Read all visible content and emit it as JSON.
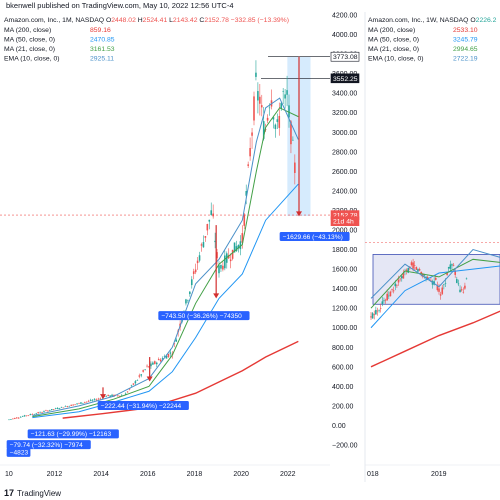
{
  "header": {
    "published": "bkenwell published on TradingView.com, May 10, 2022 12:56 UTC-4"
  },
  "footer": {
    "brand_logo": "17",
    "brand": "TradingView"
  },
  "colors": {
    "candle_up": "#26a69a",
    "candle_down": "#ef5350",
    "ma200": "#e53935",
    "ma50": "#2196f3",
    "ma21": "#43a047",
    "ema10": "#4a90c8",
    "measure": "#2962ff"
  },
  "chart_data": [
    {
      "type": "candlestick",
      "panel": "left",
      "title": "Amazon.com, Inc., 1M, NASDAQ",
      "ohlc_labels": {
        "O": "O",
        "H": "H",
        "L": "L",
        "C": "C"
      },
      "ohlc": {
        "open": "2448.02",
        "high": "2524.41",
        "low": "2143.42",
        "close": "2152.78",
        "change": "−332.85 (−13.39%)"
      },
      "indicators": [
        {
          "name": "MA (200, close)",
          "value": "859.16",
          "color": "#e53935"
        },
        {
          "name": "MA (50, close, 0)",
          "value": "2470.85",
          "color": "#2196f3"
        },
        {
          "name": "MA (21, close, 0)",
          "value": "3161.53",
          "color": "#43a047"
        },
        {
          "name": "EMA (10, close, 0)",
          "value": "2925.11",
          "color": "#4a90c8"
        }
      ],
      "y_ticks": [
        "4200.00",
        "4000.00",
        "3800.00",
        "3600.00",
        "3400.00",
        "3200.00",
        "3000.00",
        "2800.00",
        "2600.00",
        "2400.00",
        "2200.00",
        "2000.00",
        "1800.00",
        "1600.00",
        "1400.00",
        "1200.00",
        "1000.00",
        "800.00",
        "600.00",
        "400.00",
        "200.00",
        "0.00",
        "−200.00"
      ],
      "x_ticks": [
        "10",
        "2012",
        "2014",
        "2016",
        "2018",
        "2020",
        "2022"
      ],
      "price_tags": [
        {
          "label": "3773.08",
          "value": 3773.08,
          "style": "outline"
        },
        {
          "label": "3552.25",
          "value": 3552.25,
          "style": "dark"
        },
        {
          "label": "2152.78",
          "value": 2152.78,
          "style": "red"
        },
        {
          "label": "21d 4h",
          "value": 2090,
          "style": "red"
        }
      ],
      "measurements": [
        {
          "label": "−1629.66 (−43.13%)",
          "value": -1629.66
        },
        {
          "label": "−743.50 (−36.26%) −74350",
          "value": -743.5
        },
        {
          "label": "−222.44 (−31.94%) −22244",
          "value": -222.44
        },
        {
          "label": "−121.63 (−29.99%) −12163",
          "value": -121.63
        },
        {
          "label": "−79.74 (−32.32%) −7974",
          "value": -79.74
        },
        {
          "label": "−4823",
          "value": -48.23
        }
      ],
      "series": [
        {
          "name": "MA 200",
          "x": [
            2012.3,
            2014,
            2016,
            2018,
            2020,
            2021,
            2022.4
          ],
          "y": [
            75,
            120,
            180,
            330,
            560,
            700,
            860
          ]
        },
        {
          "name": "MA 50",
          "x": [
            2011,
            2013,
            2014.5,
            2016,
            2017,
            2018,
            2019,
            2020,
            2021,
            2022.4
          ],
          "y": [
            80,
            140,
            240,
            350,
            550,
            900,
            1300,
            1550,
            2100,
            2470
          ]
        },
        {
          "name": "MA 21",
          "x": [
            2011,
            2013,
            2014.5,
            2016,
            2017,
            2018,
            2019,
            2020,
            2020.6,
            2021,
            2021.6,
            2022.4
          ],
          "y": [
            90,
            170,
            270,
            400,
            720,
            1250,
            1650,
            1850,
            2600,
            3050,
            3250,
            3160
          ]
        },
        {
          "name": "EMA 10",
          "x": [
            2011,
            2013,
            2014.5,
            2016,
            2017,
            2018,
            2019,
            2020,
            2020.6,
            2021,
            2021.6,
            2022.4
          ],
          "y": [
            100,
            200,
            300,
            480,
            800,
            1450,
            1700,
            2100,
            2900,
            3250,
            3350,
            2925
          ]
        }
      ]
    },
    {
      "type": "candlestick",
      "panel": "right",
      "title": "Amazon.com, Inc., 1W, NASDAQ",
      "ohlc_labels": {
        "O": "O"
      },
      "ohlc": {
        "open": "2226.2"
      },
      "indicators": [
        {
          "name": "MA (200, close)",
          "value": "2533.10",
          "color": "#e53935"
        },
        {
          "name": "MA (50, close, 0)",
          "value": "3245.79",
          "color": "#2196f3"
        },
        {
          "name": "MA (21, close, 0)",
          "value": "2994.65",
          "color": "#43a047"
        },
        {
          "name": "EMA (10, close, 0)",
          "value": "2722.19",
          "color": "#4a90c8"
        }
      ],
      "x_ticks": [
        "018",
        "2019"
      ],
      "series": [
        {
          "name": "MA 200",
          "x": [
            2018,
            2018.5,
            2019,
            2019.5,
            2020
          ],
          "y": [
            600,
            760,
            920,
            1050,
            1200
          ]
        },
        {
          "name": "MA 50",
          "x": [
            2018,
            2018.5,
            2019,
            2019.5,
            2020
          ],
          "y": [
            1000,
            1380,
            1560,
            1600,
            1640
          ]
        },
        {
          "name": "MA 21",
          "x": [
            2018,
            2018.5,
            2019,
            2019.5,
            2020
          ],
          "y": [
            1200,
            1580,
            1520,
            1700,
            1660
          ]
        },
        {
          "name": "EMA 10",
          "x": [
            2018,
            2018.5,
            2019,
            2019.5,
            2020
          ],
          "y": [
            1300,
            1650,
            1420,
            1800,
            1700
          ]
        }
      ]
    }
  ]
}
